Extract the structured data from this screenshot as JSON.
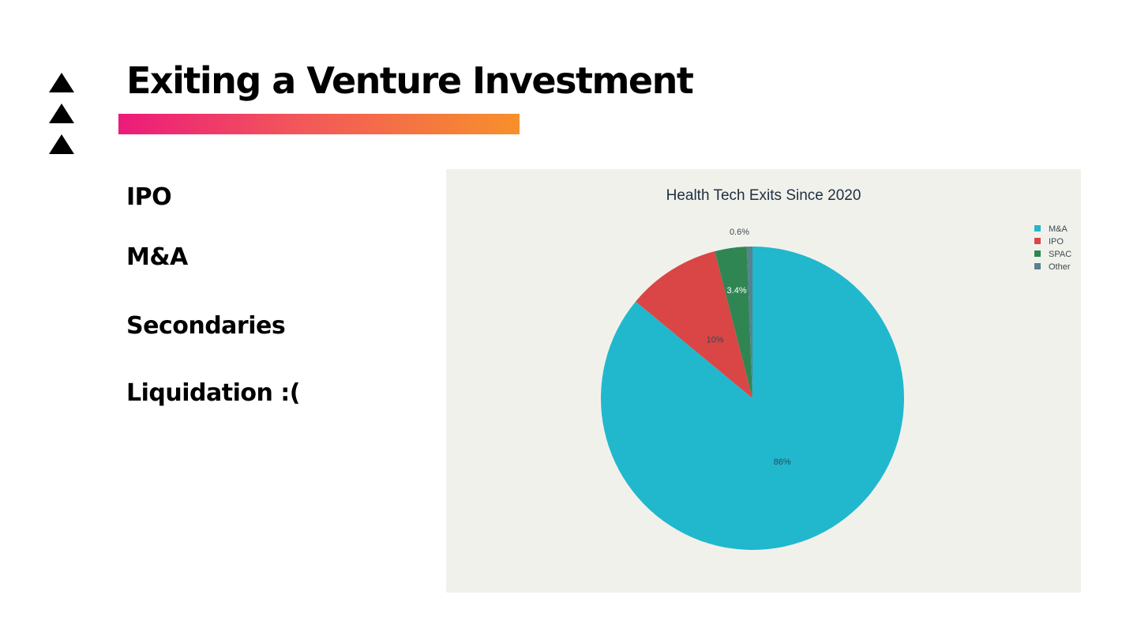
{
  "slide": {
    "title": "Exiting a Venture Investment",
    "bullets": [
      "IPO",
      "M&A",
      "Secondaries",
      "Liquidation :("
    ]
  },
  "colors": {
    "accent_gradient": [
      "#ec1b7a",
      "#f2575a",
      "#f7902b"
    ],
    "chart_background": "#f1f1ec",
    "title_text": "#203040"
  },
  "chart_data": {
    "type": "pie",
    "title": "Health Tech Exits Since 2020",
    "categories": [
      "M&A",
      "IPO",
      "SPAC",
      "Other"
    ],
    "values": [
      86,
      10,
      3.4,
      0.6
    ],
    "labels": [
      "86%",
      "10%",
      "3.4%",
      "0.6%"
    ],
    "colors": [
      "#21b8cd",
      "#da4645",
      "#2f8653",
      "#56838f"
    ],
    "start_angle_deg": 0,
    "direction": "clockwise",
    "legend": "top-right"
  }
}
